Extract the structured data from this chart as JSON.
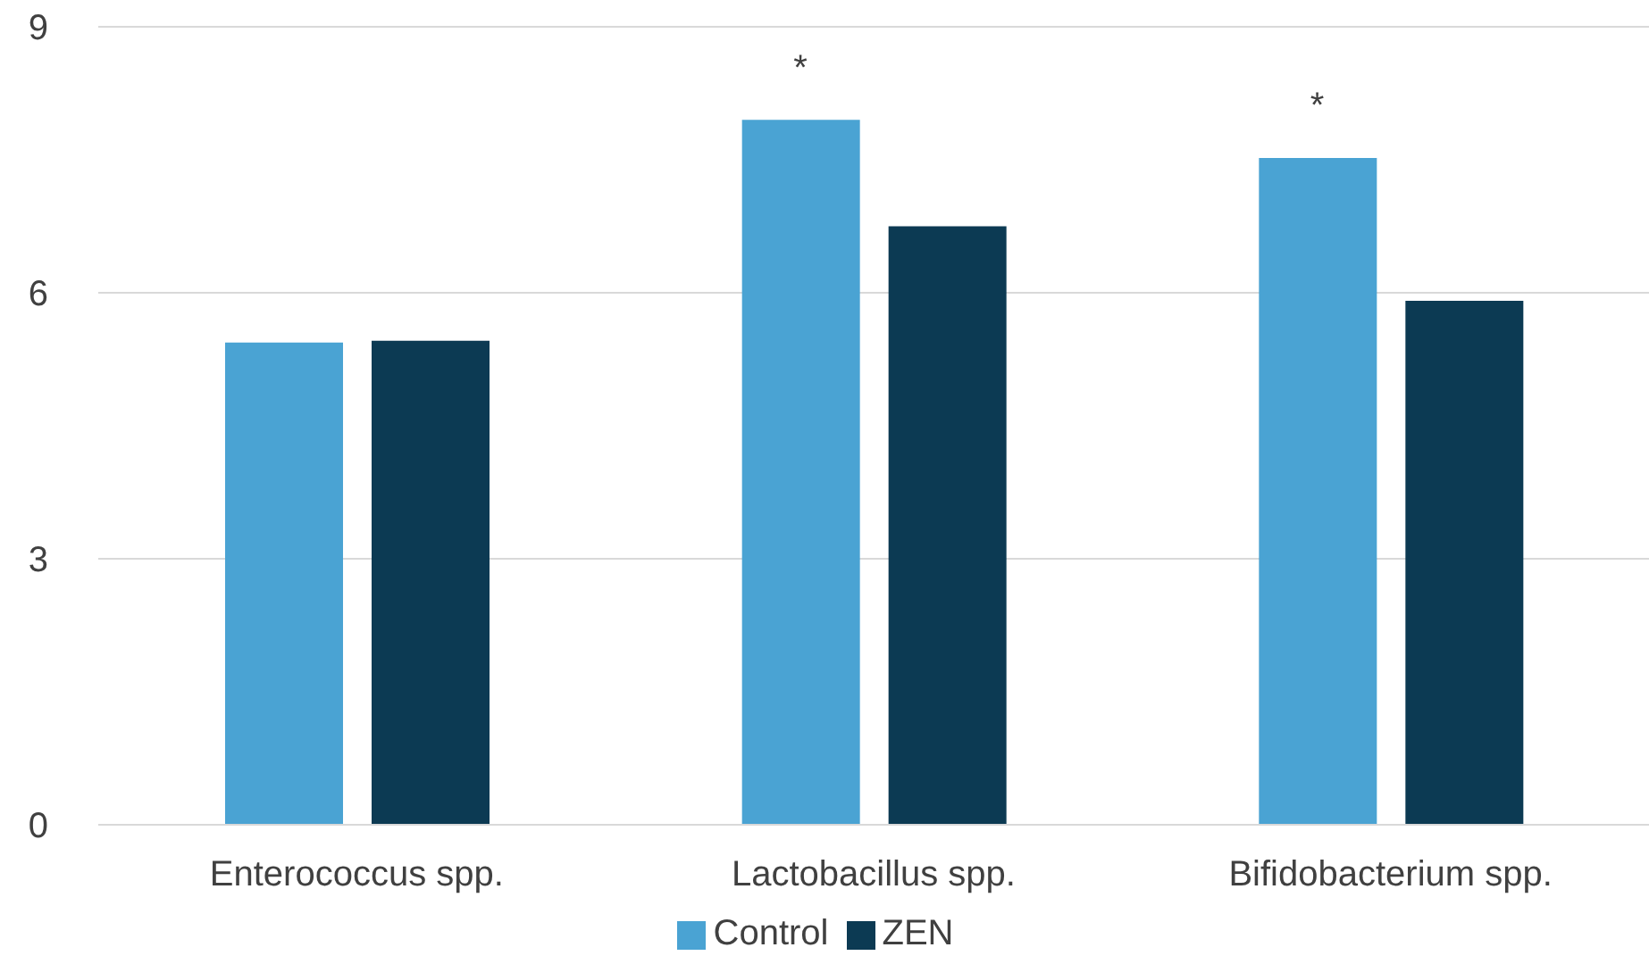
{
  "chart_data": {
    "type": "bar",
    "categories": [
      "Enterococcus spp.",
      "Lactobacillus spp.",
      "Bifidobacterium spp."
    ],
    "series": [
      {
        "name": "Control",
        "color": "#4aa3d3",
        "values": [
          5.44,
          7.95,
          7.52
        ]
      },
      {
        "name": "ZEN",
        "color": "#0c3a53",
        "values": [
          5.46,
          6.75,
          5.91
        ]
      }
    ],
    "ylim": [
      0,
      9
    ],
    "yticks": [
      0,
      3,
      6,
      9
    ],
    "grid": "y",
    "legend": "bottom",
    "annotations": [
      "*",
      "*"
    ]
  }
}
